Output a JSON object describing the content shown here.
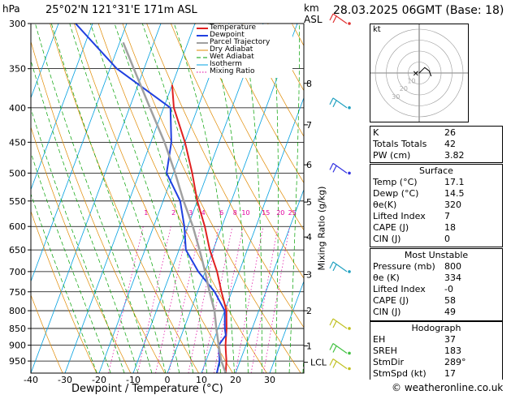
{
  "header": {
    "hpa_label": "hPa",
    "location": "25°02'N  121°31'E  171m  ASL",
    "km_label": "km",
    "asl_label": "ASL",
    "datetime": "28.03.2025  06GMT  (Base: 18)"
  },
  "chart_data": {
    "type": "skew-t",
    "title": "25°02'N  121°31'E  171m  ASL",
    "xlabel": "Dewpoint / Temperature (°C)",
    "ylabel": "hPa",
    "mixing_ratio_axis_label": "Mixing Ratio (g/kg)",
    "xlim": [
      -40,
      40
    ],
    "ylim": [
      300,
      990
    ],
    "pressure_ticks": [
      300,
      350,
      400,
      450,
      500,
      550,
      600,
      650,
      700,
      750,
      800,
      850,
      900,
      950
    ],
    "x_ticks": [
      -40,
      -30,
      -20,
      -10,
      0,
      10,
      20,
      30
    ],
    "km_ticks": [
      {
        "km": "8",
        "p": 368
      },
      {
        "km": "7",
        "p": 424
      },
      {
        "km": "6",
        "p": 486
      },
      {
        "km": "5",
        "p": 552
      },
      {
        "km": "4",
        "p": 622
      },
      {
        "km": "3",
        "p": 707
      },
      {
        "km": "2",
        "p": 800
      },
      {
        "km": "1",
        "p": 902
      },
      {
        "km": "LCL",
        "p": 954
      }
    ],
    "mixing_ratio_labels": [
      "1",
      "2",
      "3",
      "4",
      "6",
      "8",
      "10",
      "15",
      "20",
      "25"
    ],
    "mixing_ratio_values": [
      1,
      2,
      3,
      4,
      6,
      8,
      10,
      15,
      20,
      25
    ],
    "mixing_ratio_label_p": 590,
    "legend": [
      "Temperature",
      "Dewpoint",
      "Parcel Trajectory",
      "Dry Adiabat",
      "Wet Adiabat",
      "Isotherm",
      "Mixing Ratio"
    ],
    "series": [
      {
        "name": "Temperature",
        "color": "#e02020",
        "p": [
          990,
          950,
          925,
          900,
          850,
          800,
          750,
          700,
          650,
          600,
          550,
          500,
          450,
          400,
          370
        ],
        "t": [
          17.1,
          16.0,
          15.0,
          14.0,
          12.5,
          10.5,
          7.0,
          3.5,
          -1.0,
          -5.0,
          -10.0,
          -14.5,
          -20.0,
          -27.0,
          -30.0
        ]
      },
      {
        "name": "Dewpoint",
        "color": "#2040e0",
        "p": [
          990,
          950,
          925,
          900,
          870,
          850,
          800,
          750,
          700,
          650,
          600,
          550,
          500,
          450,
          400,
          350,
          300
        ],
        "t": [
          14.5,
          14.0,
          13.0,
          12.0,
          13.0,
          12.0,
          10.0,
          5.0,
          -2.0,
          -8.0,
          -11.0,
          -15.0,
          -22.0,
          -24.0,
          -28.0,
          -48.0,
          -65.0
        ]
      },
      {
        "name": "Parcel Trajectory",
        "color": "#a0a0a0",
        "p": [
          990,
          950,
          900,
          850,
          800,
          750,
          700,
          650,
          600,
          550,
          500,
          450,
          400,
          350,
          320
        ],
        "t": [
          17.1,
          14.5,
          12.0,
          9.5,
          7.0,
          3.5,
          0.0,
          -4.0,
          -8.5,
          -14.0,
          -19.5,
          -26.0,
          -34.0,
          -43.0,
          -49.0
        ]
      }
    ],
    "wind_barbs": [
      {
        "p": 300,
        "color": "#e03030"
      },
      {
        "p": 400,
        "color": "#20a0c0"
      },
      {
        "p": 500,
        "color": "#3030e0"
      },
      {
        "p": 700,
        "color": "#20a0c0"
      },
      {
        "p": 850,
        "color": "#c0c020"
      },
      {
        "p": 925,
        "color": "#40c040"
      },
      {
        "p": 975,
        "color": "#c0c020"
      }
    ]
  },
  "hodograph": {
    "unit": "kt",
    "rings": [
      10,
      20,
      30,
      40
    ],
    "ring_labels": [
      "10",
      "20",
      "30"
    ],
    "trace": [
      {
        "u": 0,
        "v": 0
      },
      {
        "u": 2,
        "v": 2
      },
      {
        "u": 5,
        "v": 5
      },
      {
        "u": 9,
        "v": 2
      },
      {
        "u": 11,
        "v": -3
      }
    ],
    "storm_motion": {
      "u": -4,
      "v": 0
    }
  },
  "indices": {
    "top": [
      {
        "label": "K",
        "value": "26"
      },
      {
        "label": "Totals Totals",
        "value": "42"
      },
      {
        "label": "PW (cm)",
        "value": "3.82"
      }
    ],
    "surface": {
      "title": "Surface",
      "rows": [
        {
          "label": "Temp (°C)",
          "value": "17.1"
        },
        {
          "label": "Dewp (°C)",
          "value": "14.5"
        },
        {
          "label": "θe(K)",
          "value": "320"
        },
        {
          "label": "Lifted Index",
          "value": "7"
        },
        {
          "label": "CAPE (J)",
          "value": "18"
        },
        {
          "label": "CIN (J)",
          "value": "0"
        }
      ]
    },
    "most_unstable": {
      "title": "Most Unstable",
      "rows": [
        {
          "label": "Pressure (mb)",
          "value": "800"
        },
        {
          "label": "θe (K)",
          "value": "334"
        },
        {
          "label": "Lifted Index",
          "value": "-0"
        },
        {
          "label": "CAPE (J)",
          "value": "58"
        },
        {
          "label": "CIN (J)",
          "value": "49"
        }
      ]
    },
    "hodograph_box": {
      "title": "Hodograph",
      "rows": [
        {
          "label": "EH",
          "value": "37"
        },
        {
          "label": "SREH",
          "value": "183"
        },
        {
          "label": "StmDir",
          "value": "289°"
        },
        {
          "label": "StmSpd (kt)",
          "value": "17"
        }
      ]
    }
  },
  "footer": {
    "credit": "© weatheronline.co.uk"
  },
  "colors": {
    "temperature": "#e02020",
    "dewpoint": "#2040e0",
    "parcel": "#a0a0a0",
    "dry_adiabat": "#e08a00",
    "wet_adiabat": "#00a000",
    "isotherm": "#00a0e0",
    "mixing_ratio": "#e000a0"
  }
}
